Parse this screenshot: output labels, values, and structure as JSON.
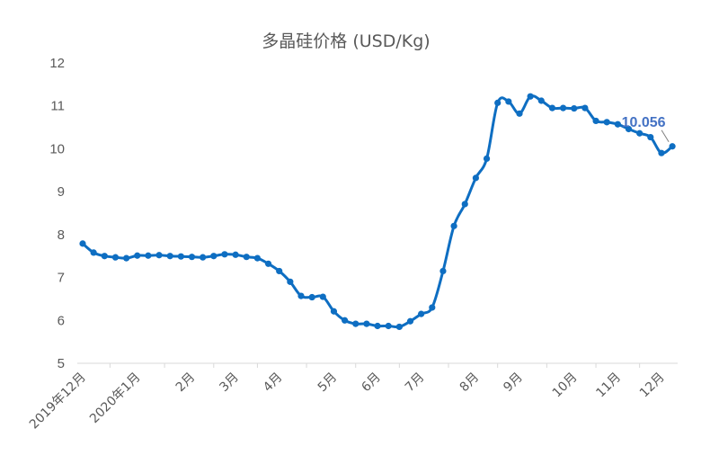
{
  "chart_data": {
    "type": "line",
    "title": "多晶硅价格 (USD/Kg)",
    "xlabel": "",
    "ylabel": "",
    "ylim": [
      5,
      12
    ],
    "yticks": [
      5,
      6,
      7,
      8,
      9,
      10,
      11,
      12
    ],
    "grid": false,
    "legend": "none",
    "line_color": "#0E6EC2",
    "callout_color": "#4472C4",
    "x_tick_labels": [
      {
        "label": "2019年12月",
        "index": 0
      },
      {
        "label": "2020年1月",
        "index": 5
      },
      {
        "label": "2月",
        "index": 10
      },
      {
        "label": "3月",
        "index": 14
      },
      {
        "label": "4月",
        "index": 18
      },
      {
        "label": "5月",
        "index": 23
      },
      {
        "label": "6月",
        "index": 27
      },
      {
        "label": "7月",
        "index": 31
      },
      {
        "label": "8月",
        "index": 36
      },
      {
        "label": "9月",
        "index": 40
      },
      {
        "label": "10月",
        "index": 45
      },
      {
        "label": "11月",
        "index": 49
      },
      {
        "label": "12月",
        "index": 53
      }
    ],
    "series": [
      {
        "values": [
          7.79,
          7.58,
          7.5,
          7.47,
          7.45,
          7.51,
          7.51,
          7.52,
          7.5,
          7.49,
          7.48,
          7.47,
          7.5,
          7.54,
          7.53,
          7.48,
          7.45,
          7.32,
          7.15,
          6.9,
          6.57,
          6.54,
          6.55,
          6.21,
          6.0,
          5.92,
          5.92,
          5.87,
          5.87,
          5.85,
          5.98,
          6.15,
          6.3,
          7.15,
          8.2,
          8.71,
          9.32,
          9.77,
          11.07,
          11.1,
          10.82,
          11.22,
          11.12,
          10.95,
          10.95,
          10.94,
          10.95,
          10.65,
          10.62,
          10.57,
          10.46,
          10.36,
          10.27,
          9.9,
          10.056
        ]
      }
    ],
    "annotations": [
      {
        "text": "10.056",
        "index": 54
      }
    ]
  }
}
